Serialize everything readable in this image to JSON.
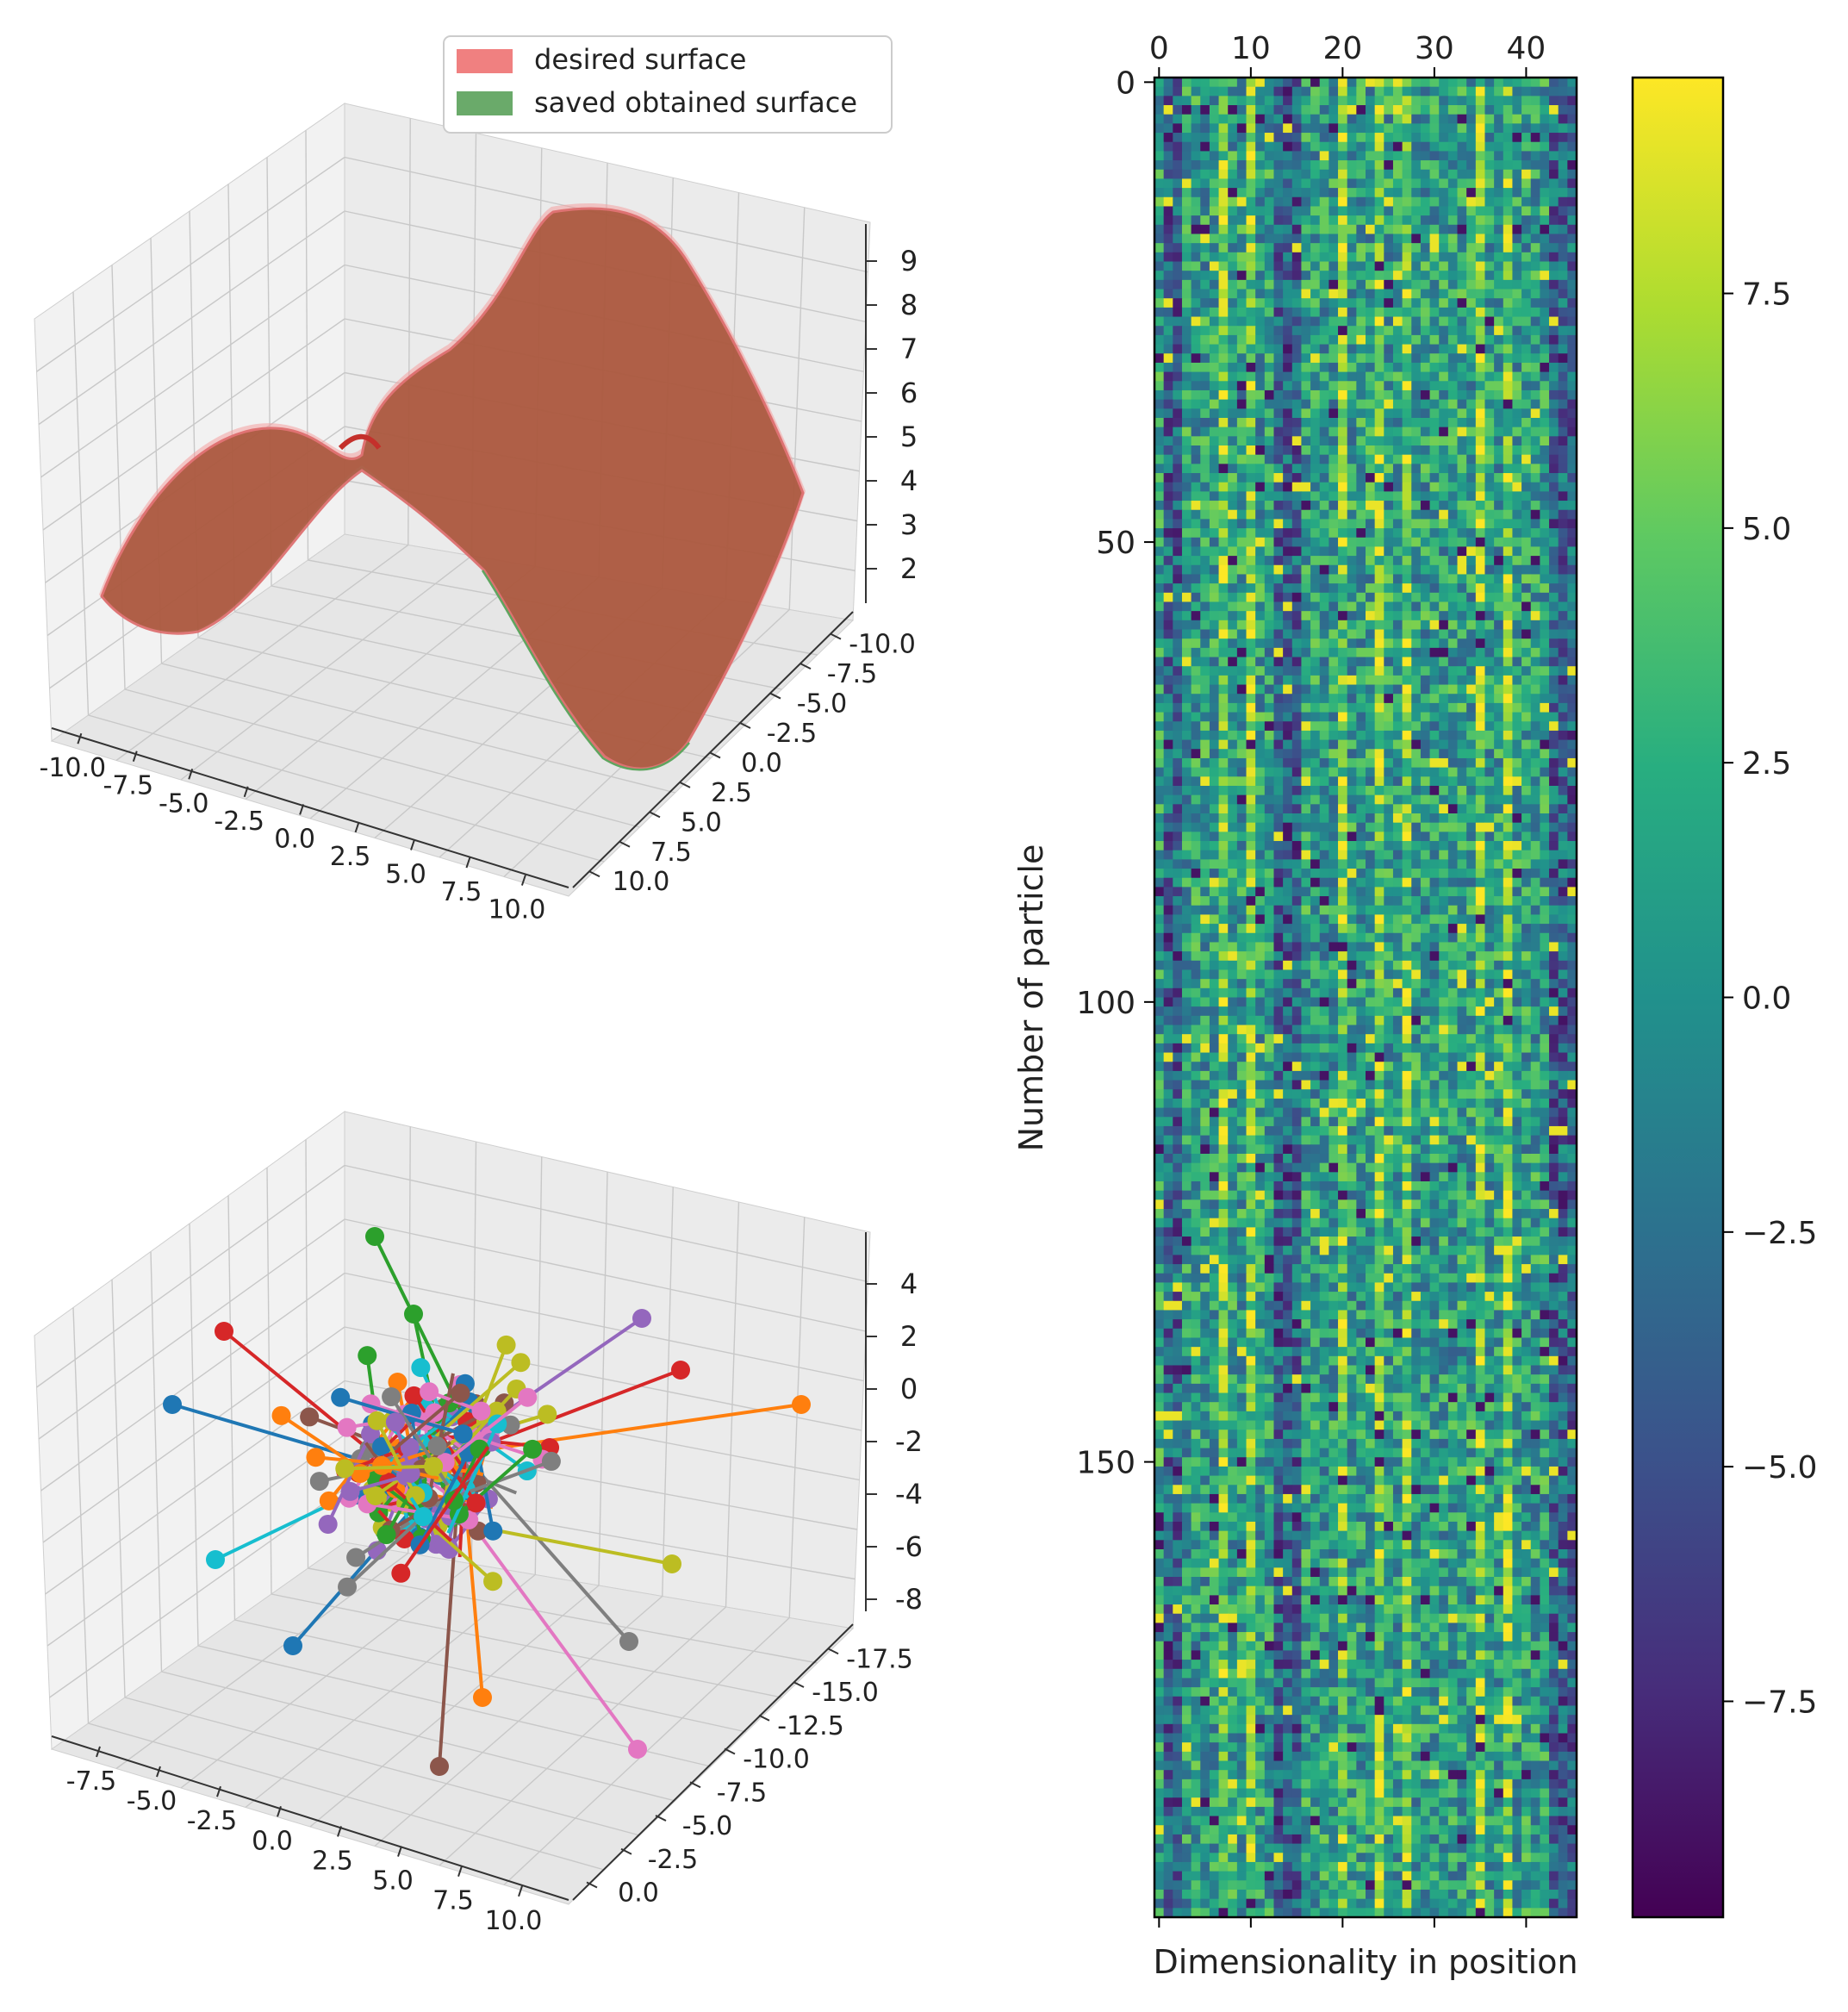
{
  "chart_data": [
    {
      "type": "surface3d",
      "panel": "top-left",
      "title": "",
      "legend": {
        "placement": "top-right",
        "entries": [
          {
            "label": "desired surface",
            "color": "#f08080"
          },
          {
            "label": "saved obtained surface",
            "color": "#6aaa6a"
          }
        ]
      },
      "x_ticks": [
        "-10.0",
        "-7.5",
        "-5.0",
        "-2.5",
        "0.0",
        "2.5",
        "5.0",
        "7.5",
        "10.0"
      ],
      "y_ticks": [
        "10.0",
        "7.5",
        "5.0",
        "2.5",
        "0.0",
        "-2.5",
        "-5.0",
        "-7.5",
        "-10.0"
      ],
      "z_ticks": [
        "9",
        "8",
        "7",
        "6",
        "5",
        "4",
        "3",
        "2"
      ],
      "xlim": [
        -10,
        10
      ],
      "ylim": [
        -10,
        10
      ],
      "zlim": [
        1.5,
        9.5
      ],
      "surface_color": "#b85a3c",
      "surface_edge_color": "#e07070",
      "surface_shape": "saddle-like: z ≈ 9.5 peak near far-right ridge, ≈4.3 secondary ridge at left, ≈1.8 minima at near corners"
    },
    {
      "type": "scatter3d",
      "panel": "bottom-left",
      "x_ticks": [
        "-7.5",
        "-5.0",
        "-2.5",
        "0.0",
        "2.5",
        "5.0",
        "7.5",
        "10.0"
      ],
      "y_ticks": [
        "0.0",
        "-2.5",
        "-5.0",
        "-7.5",
        "-10.0",
        "-12.5",
        "-15.0",
        "-17.5"
      ],
      "z_ticks": [
        "4",
        "2",
        "0",
        "-2",
        "-4",
        "-6",
        "-8"
      ],
      "xlim": [
        -8,
        10
      ],
      "ylim": [
        -18,
        1
      ],
      "zlim": [
        -9,
        5
      ],
      "series_colors": [
        "#1f77b4",
        "#ff7f0e",
        "#2ca02c",
        "#d62728",
        "#9467bd",
        "#8c564b",
        "#e377c2",
        "#7f7f7f",
        "#bcbd22",
        "#17becf"
      ],
      "description_points": "many particle trajectories (line segments with circular endpoint markers) clustered around the origin"
    },
    {
      "type": "heatmap",
      "panel": "right",
      "xlabel": "Dimensionality in position",
      "ylabel": "Number of particle",
      "x_ticks": [
        "0",
        "10",
        "20",
        "30",
        "40"
      ],
      "y_ticks": [
        "0",
        "50",
        "100",
        "150"
      ],
      "n_cols": 46,
      "n_rows": 200,
      "colormap": "viridis",
      "vmin": -9.8,
      "vmax": 9.8,
      "colorbar_ticks": [
        "7.5",
        "5.0",
        "2.5",
        "0.0",
        "−2.5",
        "−5.0",
        "−7.5"
      ],
      "column_means_pattern": "bright stripes at columns ~7, ~20, ~27, ~35, ~38; dark at columns ~13-15, ~43-45"
    }
  ]
}
